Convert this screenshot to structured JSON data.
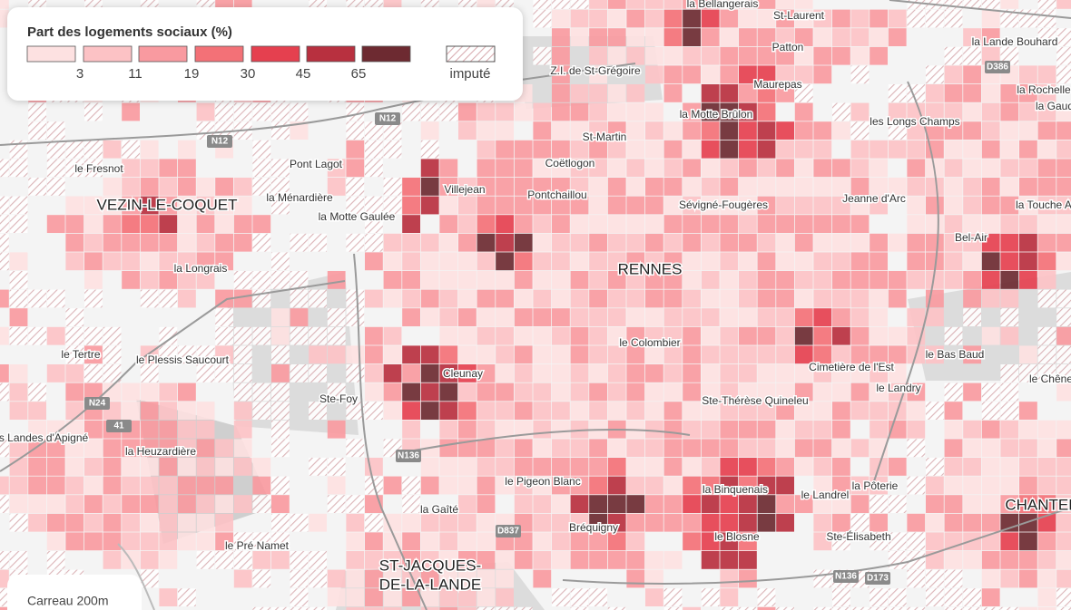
{
  "legend": {
    "title": "Part des logements sociaux (%)",
    "colors": [
      "#fde1e1",
      "#fcc2c5",
      "#f99aa0",
      "#f37177",
      "#e5404f",
      "#b8303f",
      "#6d2a31"
    ],
    "breaks": [
      3,
      11,
      19,
      30,
      45,
      65
    ],
    "imputed_label": "imputé"
  },
  "scale_note": "Carreau 200m",
  "places": [
    "la Bellangerais",
    "St-Laurent",
    "la Lande Bouhard",
    "Patton",
    "Z.I. de St-Grégoire",
    "Maurepas",
    "la Rochelle",
    "la Gaud",
    "la Motte Brûlon",
    "les Longs Champs",
    "St-Martin",
    "Pont Lagot",
    "Coëtlogon",
    "le Fresnot",
    "Villejean",
    "Pontchaillou",
    "la Ménardière",
    "Jeanne d'Arc",
    "Sévigné-Fougères",
    "la Touche A",
    "la Motte Gaulée",
    "Bel-Air",
    "la Longrais",
    "le Colombier",
    "le Tertre",
    "le Bas Baud",
    "le Plessis Saucourt",
    "Cimetière de l'Est",
    "Cleunay",
    "le Chêne",
    "le Landry",
    "Ste-Foy",
    "Ste-Thérèse Quineleu",
    "s Landes d'Apigné",
    "la Heuzardière",
    "le Pigeon Blanc",
    "la Binquenais",
    "le Landrel",
    "la Pôterie",
    "la Gaîté",
    "Bréquigny",
    "le Blosne",
    "Ste-Élisabeth",
    "le Pré Namet"
  ],
  "towns": [
    "VEZIN-LE-COQUET",
    "RENNES",
    "CHANTEP",
    "ST-JACQUES-",
    "DE-LA-LANDE"
  ],
  "roads": [
    "D386",
    "N12",
    "N12",
    "N24",
    "41",
    "N136",
    "D837",
    "N136",
    "D173"
  ]
}
